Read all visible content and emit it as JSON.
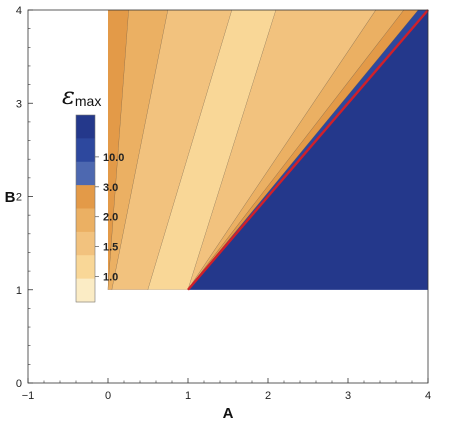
{
  "chart_data": {
    "type": "contour",
    "xlabel": "A",
    "ylabel": "B",
    "xlim": [
      -1,
      4
    ],
    "ylim": [
      0,
      4
    ],
    "x_ticks": [
      "−1",
      "0",
      "1",
      "2",
      "3",
      "4"
    ],
    "y_ticks": [
      "0",
      "1",
      "2",
      "3",
      "4"
    ],
    "legend": {
      "title_symbol": "ε",
      "title_sub": "max",
      "levels": [
        "10.0",
        "3.0",
        "2.0",
        "1.5",
        "1.0"
      ],
      "placement": "left"
    },
    "region": {
      "x_min": 0,
      "x_max": 4,
      "y_min": 1,
      "y_max": 4
    },
    "boundary_line": {
      "from": [
        1,
        1
      ],
      "to": [
        4,
        4
      ],
      "color": "#d0202a"
    },
    "colors": {
      "level_0": "#fbecc5",
      "level_1": "#f9d797",
      "level_2": "#f2c27e",
      "level_3": "#ebb063",
      "level_4": "#e39a48",
      "high": "#2d489e",
      "high_dark": "#24388b",
      "contour_line": "#6b5a40"
    },
    "bands": [
      {
        "fill": "level_4",
        "bottom": [
          0.0,
          0.0
        ],
        "top": [
          0.0,
          0.26
        ]
      },
      {
        "fill": "level_3",
        "bottom": [
          0.0,
          0.05
        ],
        "top": [
          0.26,
          0.75
        ]
      },
      {
        "fill": "level_2",
        "bottom": [
          0.05,
          0.5
        ],
        "top": [
          0.75,
          1.55
        ]
      },
      {
        "fill": "level_1",
        "bottom": [
          0.5,
          1.0
        ],
        "top": [
          1.55,
          2.1
        ]
      },
      {
        "fill": "level_2",
        "bottom": [
          1.0,
          1.0
        ],
        "top": [
          2.1,
          3.35
        ]
      },
      {
        "fill": "level_3",
        "bottom": [
          1.0,
          1.0
        ],
        "top": [
          3.35,
          3.7
        ]
      },
      {
        "fill": "level_4",
        "bottom": [
          1.0,
          1.0
        ],
        "top": [
          3.7,
          3.88
        ]
      },
      {
        "fill": "high",
        "bottom": [
          1.0,
          1.0
        ],
        "top": [
          3.88,
          4.0
        ]
      }
    ]
  }
}
